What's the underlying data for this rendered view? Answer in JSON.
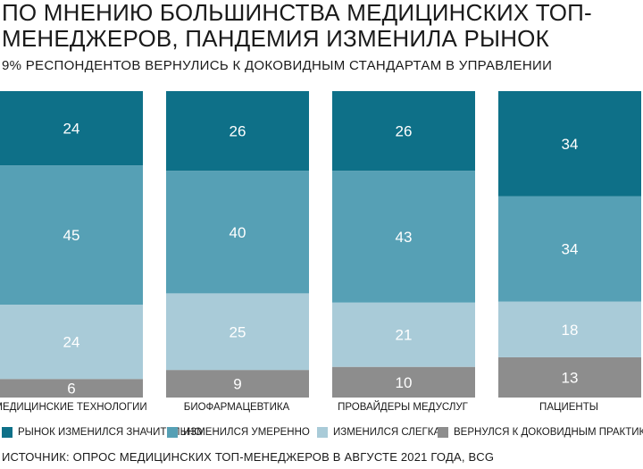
{
  "header": {
    "title": "ПО МНЕНИЮ БОЛЬШИНСТВА МЕДИЦИНСКИХ ТОП-МЕНЕДЖЕРОВ, ПАНДЕМИЯ ИЗМЕНИЛА РЫНОК",
    "subtitle": "9% РЕСПОНДЕНТОВ ВЕРНУЛИСЬ К ДОКОВИДНЫМ СТАНДАРТАМ В УПРАВЛЕНИИ"
  },
  "source": "ИСТОЧНИК: ОПРОС МЕДИЦИНСКИХ ТОП-МЕНЕДЖЕРОВ В АВГУСТЕ 2021 ГОДА, BCG",
  "chart_data": {
    "type": "bar",
    "stacked": true,
    "percent": true,
    "categories": [
      "МЕДИЦИНСКИЕ ТЕХНОЛОГИИ",
      "БИОФАРМАЦЕВТИКА",
      "ПРОВАЙДЕРЫ МЕДУСЛУГ",
      "ПАЦИЕНТЫ"
    ],
    "series": [
      {
        "name": "РЫНОК ИЗМЕНИЛСЯ ЗНАЧИТЕЛЬНО",
        "values": [
          24,
          26,
          26,
          34
        ],
        "color": "#0e7088"
      },
      {
        "name": "ИЗМЕНИЛСЯ УМЕРЕННО",
        "values": [
          45,
          40,
          43,
          34
        ],
        "color": "#56a0b5"
      },
      {
        "name": "ИЗМЕНИЛСЯ СЛЕГКА",
        "values": [
          24,
          25,
          21,
          18
        ],
        "color": "#a9cbd8"
      },
      {
        "name": "ВЕРНУЛСЯ К ДОКОВИДНЫМ ПРАКТИКАМ",
        "values": [
          6,
          9,
          10,
          13
        ],
        "color": "#8d8d8d"
      }
    ],
    "legend_position": "bottom",
    "grid": false
  }
}
